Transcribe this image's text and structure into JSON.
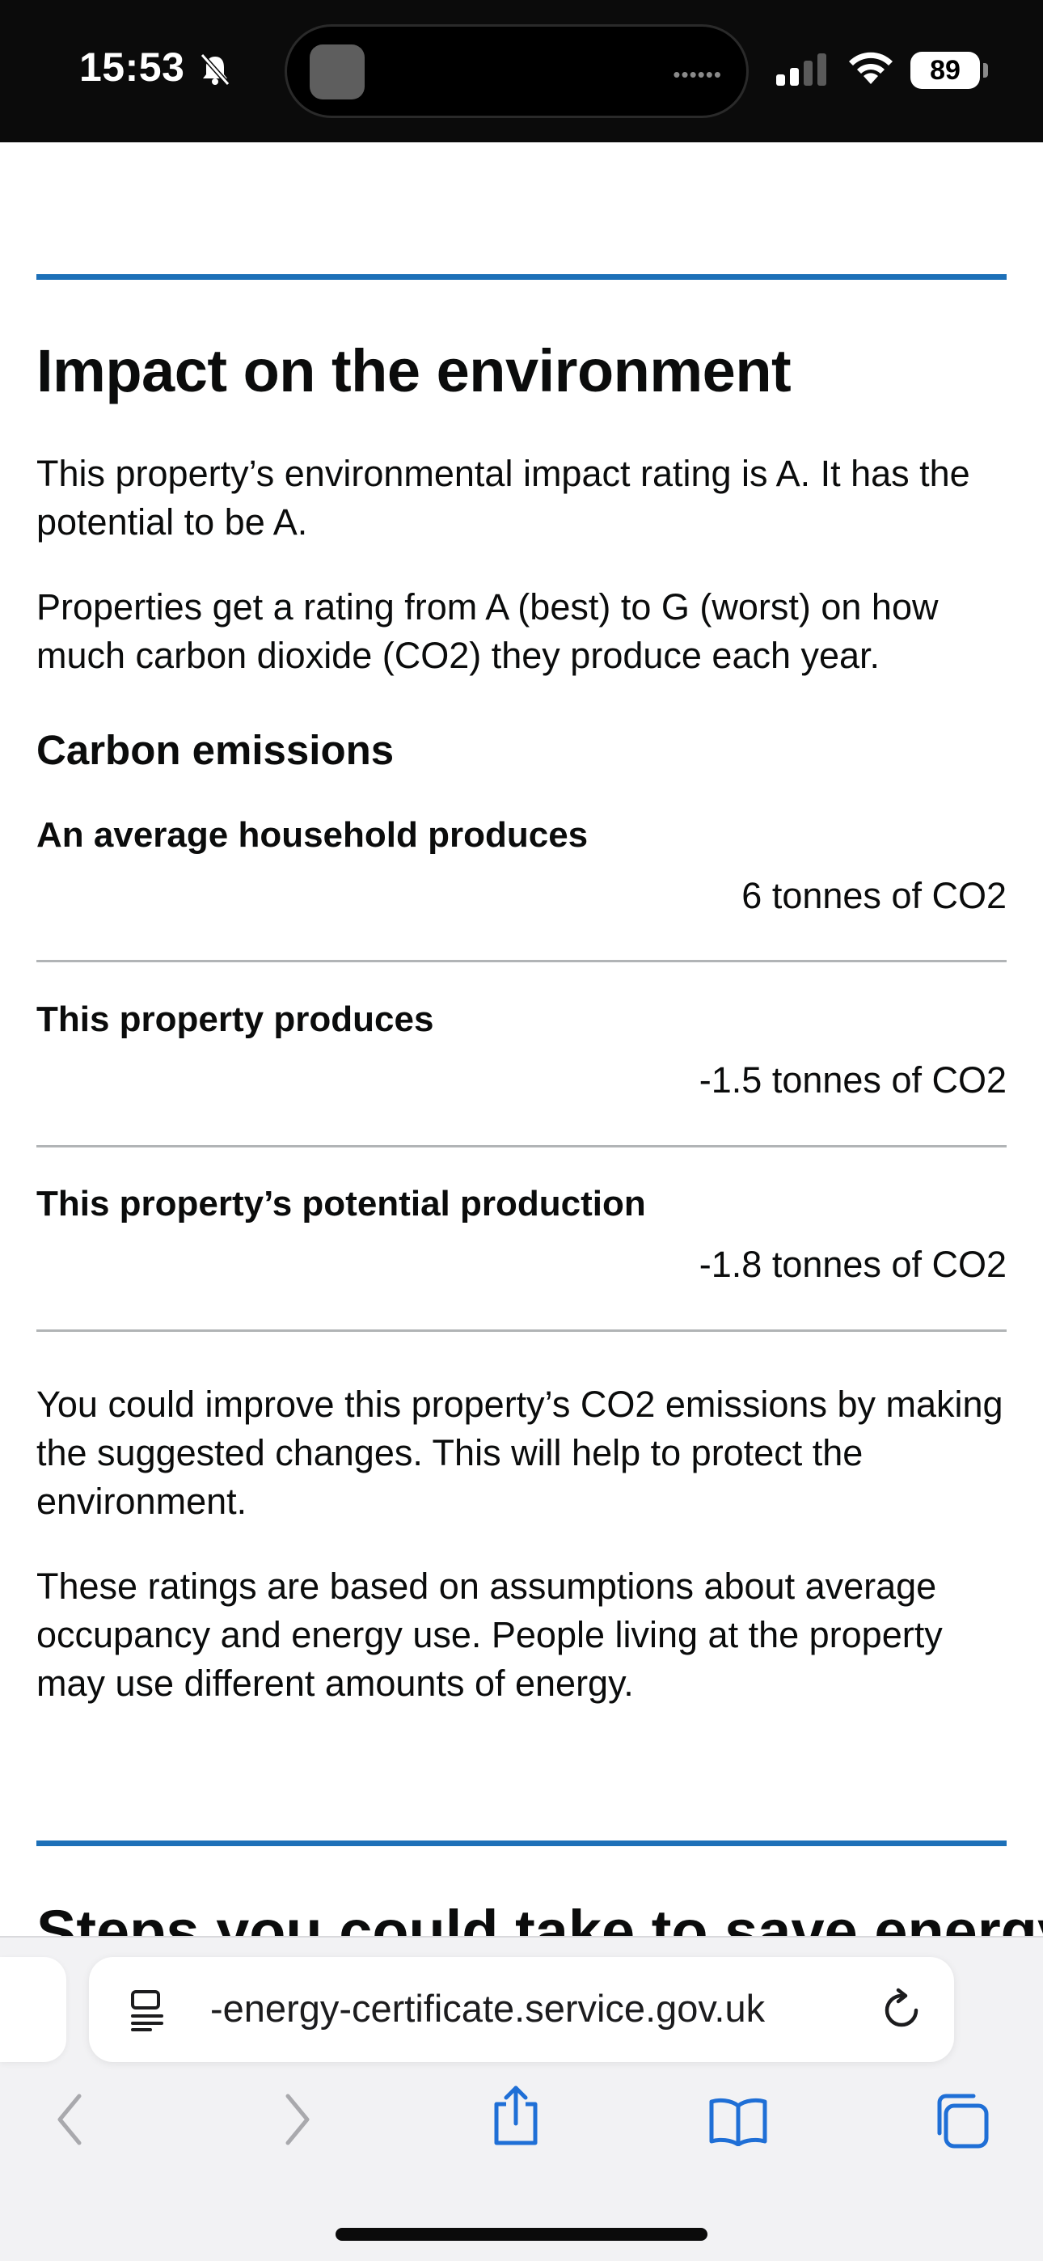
{
  "status_bar": {
    "time": "15:53",
    "battery": "89",
    "island_dots": "••••••",
    "icons": [
      "bell-slash-icon",
      "signal-icon",
      "wifi-icon",
      "battery-icon"
    ]
  },
  "section": {
    "title": "Impact on the environment",
    "intro_1": "This property’s environmental impact rating is A. It has the potential to be A.",
    "intro_2": "Properties get a rating from A (best) to G (worst) on how much carbon dioxide (CO2) they produce each year.",
    "carbon_heading": "Carbon emissions",
    "rows": [
      {
        "label": "An average household produces",
        "value": "6 tonnes of CO2"
      },
      {
        "label": "This property produces",
        "value": "-1.5 tonnes of CO2"
      },
      {
        "label": "This property’s potential production",
        "value": "-1.8 tonnes of CO2"
      }
    ],
    "outro_1": "You could improve this property’s CO2 emissions by making the suggested changes. This will help to protect the environment.",
    "outro_2": "These ratings are based on assumptions about average occupancy and energy use. People living at the property may use different amounts of energy."
  },
  "next_section": {
    "title": "Steps you could take to save energy"
  },
  "browser": {
    "url": "-energy-certificate.service.gov.uk",
    "accent_color": "#1f6fd6",
    "nav_icons": [
      "back-icon",
      "forward-icon",
      "share-icon",
      "bookmarks-icon",
      "tabs-icon"
    ]
  },
  "colors": {
    "rule": "#1d70b8",
    "text": "#0b0c0c",
    "divider": "#b1b4b6"
  }
}
